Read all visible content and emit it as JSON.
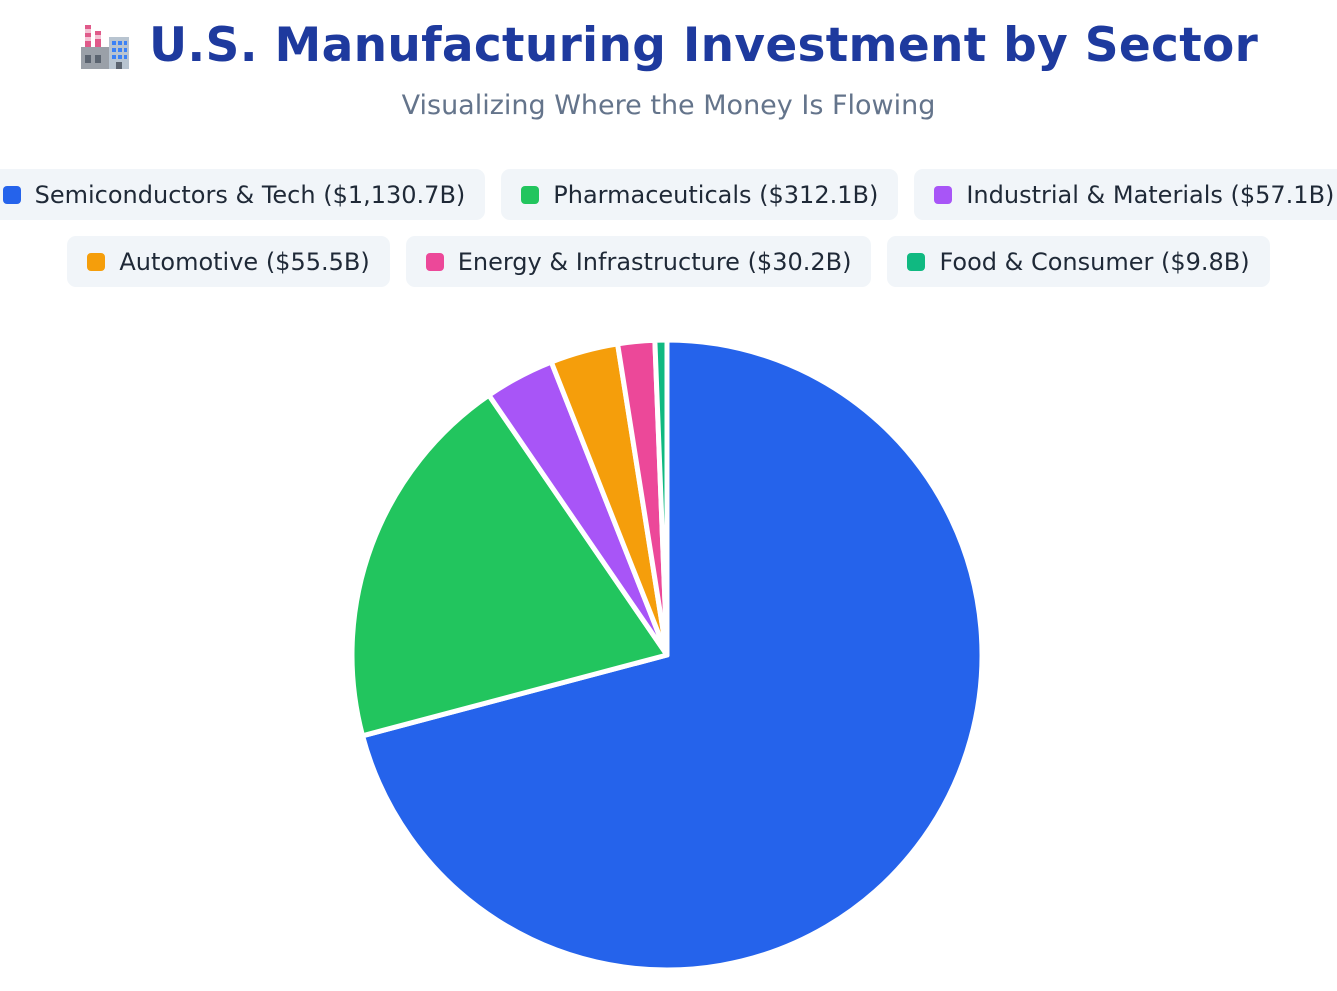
{
  "header": {
    "title": "U.S. Manufacturing Investment by Sector",
    "subtitle": "Visualizing Where the Money Is Flowing",
    "icon": "factory-icon"
  },
  "legend": {
    "rows": [
      [
        {
          "label": "Semiconductors & Tech ($1,130.7B)",
          "color": "#2563eb"
        },
        {
          "label": "Pharmaceuticals ($312.1B)",
          "color": "#22c55e"
        },
        {
          "label": "Industrial & Materials ($57.1B)",
          "color": "#a855f7"
        }
      ],
      [
        {
          "label": "Automotive ($55.5B)",
          "color": "#f59e0b"
        },
        {
          "label": "Energy & Infrastructure ($30.2B)",
          "color": "#ec4899"
        },
        {
          "label": "Food & Consumer ($9.8B)",
          "color": "#10b981"
        }
      ]
    ]
  },
  "chart_data": {
    "type": "pie",
    "title": "U.S. Manufacturing Investment by Sector",
    "subtitle": "Visualizing Where the Money Is Flowing",
    "unit": "$B",
    "legend_position": "top",
    "start_angle": "12 o'clock",
    "direction": "clockwise",
    "slices": [
      {
        "name": "Semiconductors & Tech",
        "value": 1130.7,
        "color": "#2563eb"
      },
      {
        "name": "Pharmaceuticals",
        "value": 312.1,
        "color": "#22c55e"
      },
      {
        "name": "Industrial & Materials",
        "value": 57.1,
        "color": "#a855f7"
      },
      {
        "name": "Automotive",
        "value": 55.5,
        "color": "#f59e0b"
      },
      {
        "name": "Energy & Infrastructure",
        "value": 30.2,
        "color": "#ec4899"
      },
      {
        "name": "Food & Consumer",
        "value": 9.8,
        "color": "#10b981"
      }
    ]
  }
}
